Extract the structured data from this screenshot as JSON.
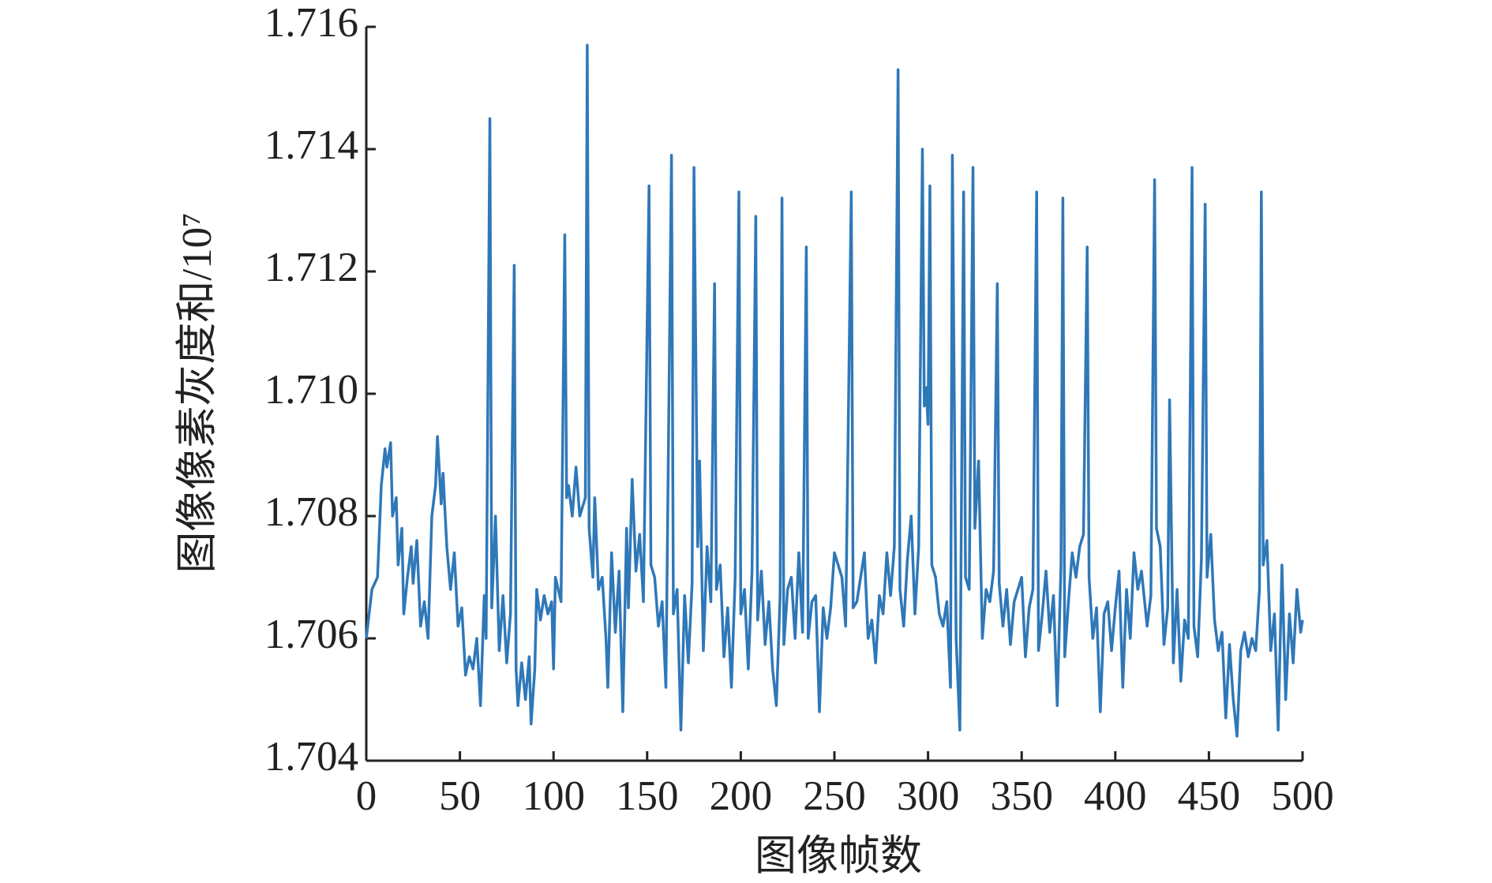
{
  "chart_data": {
    "type": "line",
    "xlabel": "图像帧数",
    "ylabel": "图像像素灰度和/10⁷",
    "xlim": [
      0,
      500
    ],
    "xticks": [
      0,
      50,
      100,
      150,
      200,
      250,
      300,
      350,
      400,
      450,
      500
    ],
    "ylim": [
      1.704,
      1.716
    ],
    "yticks": [
      1.704,
      1.706,
      1.708,
      {
        "value": 1.71,
        "label": "1.710"
      },
      1.712,
      1.714,
      1.716
    ],
    "grid": false,
    "series": [
      {
        "color": "#2f78b8",
        "x": [
          0,
          3,
          6,
          8,
          10,
          11,
          13,
          14,
          16,
          17,
          19,
          20,
          22,
          24,
          25,
          27,
          29,
          31,
          33,
          35,
          37,
          38,
          40,
          41,
          43,
          45,
          47,
          49,
          51,
          53,
          55,
          57,
          59,
          61,
          63,
          64,
          66,
          67,
          69,
          71,
          73,
          75,
          77,
          79,
          80,
          81,
          83,
          85,
          87,
          88,
          90,
          91,
          93,
          95,
          97,
          99,
          100,
          101,
          104,
          106,
          107,
          108,
          110,
          112,
          114,
          117,
          118,
          119,
          121,
          122,
          124,
          126,
          128,
          129,
          131,
          133,
          135,
          137,
          139,
          140,
          142,
          144,
          146,
          148,
          151,
          152,
          154,
          156,
          158,
          160,
          163,
          164,
          166,
          168,
          170,
          172,
          174,
          175,
          177,
          178,
          180,
          182,
          184,
          186,
          187,
          189,
          191,
          193,
          195,
          197,
          199,
          200,
          202,
          204,
          206,
          208,
          209,
          211,
          213,
          215,
          217,
          219,
          221,
          222,
          223,
          225,
          227,
          229,
          231,
          233,
          235,
          236,
          238,
          240,
          242,
          244,
          246,
          248,
          250,
          252,
          254,
          256,
          259,
          260,
          262,
          264,
          266,
          268,
          270,
          272,
          274,
          276,
          278,
          280,
          282,
          284,
          285,
          287,
          289,
          291,
          293,
          295,
          297,
          298,
          299,
          300,
          301,
          302,
          304,
          306,
          308,
          310,
          312,
          313,
          315,
          317,
          319,
          320,
          322,
          324,
          325,
          327,
          329,
          331,
          333,
          335,
          337,
          338,
          340,
          342,
          344,
          346,
          348,
          350,
          352,
          354,
          356,
          358,
          359,
          361,
          363,
          365,
          367,
          369,
          371,
          372,
          373,
          375,
          377,
          379,
          381,
          383,
          385,
          386,
          388,
          390,
          392,
          394,
          396,
          398,
          400,
          402,
          404,
          406,
          408,
          410,
          412,
          414,
          417,
          419,
          421,
          422,
          424,
          426,
          428,
          429,
          431,
          433,
          435,
          437,
          439,
          441,
          442,
          444,
          446,
          448,
          449,
          451,
          453,
          455,
          457,
          459,
          461,
          463,
          465,
          467,
          469,
          471,
          473,
          475,
          477,
          478,
          479,
          481,
          483,
          485,
          487,
          489,
          491,
          493,
          495,
          497,
          499,
          500
        ],
        "values": [
          1.706,
          1.7068,
          1.707,
          1.7085,
          1.7091,
          1.7088,
          1.7092,
          1.708,
          1.7083,
          1.7072,
          1.7078,
          1.7064,
          1.707,
          1.7075,
          1.7069,
          1.7076,
          1.7062,
          1.7066,
          1.706,
          1.708,
          1.7085,
          1.7093,
          1.7082,
          1.7087,
          1.7075,
          1.7068,
          1.7074,
          1.7062,
          1.7065,
          1.7054,
          1.7057,
          1.7055,
          1.706,
          1.7049,
          1.7067,
          1.706,
          1.7145,
          1.7065,
          1.708,
          1.7058,
          1.7067,
          1.7056,
          1.7064,
          1.7121,
          1.7055,
          1.7049,
          1.7056,
          1.705,
          1.7057,
          1.7046,
          1.7055,
          1.7068,
          1.7063,
          1.7067,
          1.7064,
          1.7066,
          1.7055,
          1.707,
          1.7066,
          1.7126,
          1.7083,
          1.7085,
          1.708,
          1.7088,
          1.708,
          1.7083,
          1.7157,
          1.7078,
          1.707,
          1.7083,
          1.7068,
          1.707,
          1.706,
          1.7052,
          1.7074,
          1.7061,
          1.7071,
          1.7048,
          1.7078,
          1.7065,
          1.7086,
          1.7071,
          1.7077,
          1.7066,
          1.7134,
          1.7072,
          1.707,
          1.7062,
          1.7066,
          1.7052,
          1.7139,
          1.7064,
          1.7068,
          1.7045,
          1.7067,
          1.7056,
          1.7069,
          1.7137,
          1.7075,
          1.7089,
          1.7058,
          1.7075,
          1.7066,
          1.7118,
          1.7068,
          1.7072,
          1.7057,
          1.7065,
          1.7052,
          1.707,
          1.7133,
          1.7064,
          1.7068,
          1.7055,
          1.7071,
          1.7129,
          1.7063,
          1.7071,
          1.7059,
          1.7066,
          1.7055,
          1.7049,
          1.7067,
          1.7132,
          1.7059,
          1.7068,
          1.707,
          1.706,
          1.7074,
          1.7061,
          1.7124,
          1.706,
          1.7066,
          1.7067,
          1.7048,
          1.7065,
          1.706,
          1.7065,
          1.7074,
          1.7072,
          1.707,
          1.7062,
          1.7133,
          1.7065,
          1.7066,
          1.707,
          1.7074,
          1.706,
          1.7063,
          1.7056,
          1.7067,
          1.7064,
          1.7074,
          1.7067,
          1.7075,
          1.7153,
          1.7068,
          1.7062,
          1.7073,
          1.708,
          1.7064,
          1.7075,
          1.714,
          1.7098,
          1.7101,
          1.7095,
          1.7134,
          1.7072,
          1.707,
          1.7064,
          1.7062,
          1.7066,
          1.7052,
          1.7139,
          1.706,
          1.7045,
          1.7133,
          1.707,
          1.7068,
          1.7137,
          1.7078,
          1.7089,
          1.706,
          1.7068,
          1.7066,
          1.7071,
          1.7118,
          1.7069,
          1.7062,
          1.7068,
          1.7059,
          1.7066,
          1.7068,
          1.707,
          1.7057,
          1.7065,
          1.7068,
          1.7133,
          1.7058,
          1.7064,
          1.7071,
          1.7061,
          1.7067,
          1.7049,
          1.7072,
          1.7132,
          1.7057,
          1.7066,
          1.7074,
          1.707,
          1.7075,
          1.7077,
          1.7124,
          1.707,
          1.706,
          1.7065,
          1.7048,
          1.7064,
          1.7066,
          1.7058,
          1.7065,
          1.7071,
          1.7052,
          1.7068,
          1.706,
          1.7074,
          1.7068,
          1.7071,
          1.7062,
          1.7067,
          1.7135,
          1.7078,
          1.7075,
          1.7059,
          1.7065,
          1.7099,
          1.7056,
          1.7068,
          1.7053,
          1.7063,
          1.706,
          1.7137,
          1.7062,
          1.7057,
          1.7073,
          1.7131,
          1.707,
          1.7077,
          1.7063,
          1.7058,
          1.7061,
          1.7047,
          1.7059,
          1.705,
          1.7044,
          1.7058,
          1.7061,
          1.7057,
          1.706,
          1.7058,
          1.7068,
          1.7133,
          1.7072,
          1.7076,
          1.7058,
          1.7064,
          1.7045,
          1.7072,
          1.705,
          1.7064,
          1.7056,
          1.7068,
          1.7061,
          1.7063
        ]
      }
    ]
  }
}
